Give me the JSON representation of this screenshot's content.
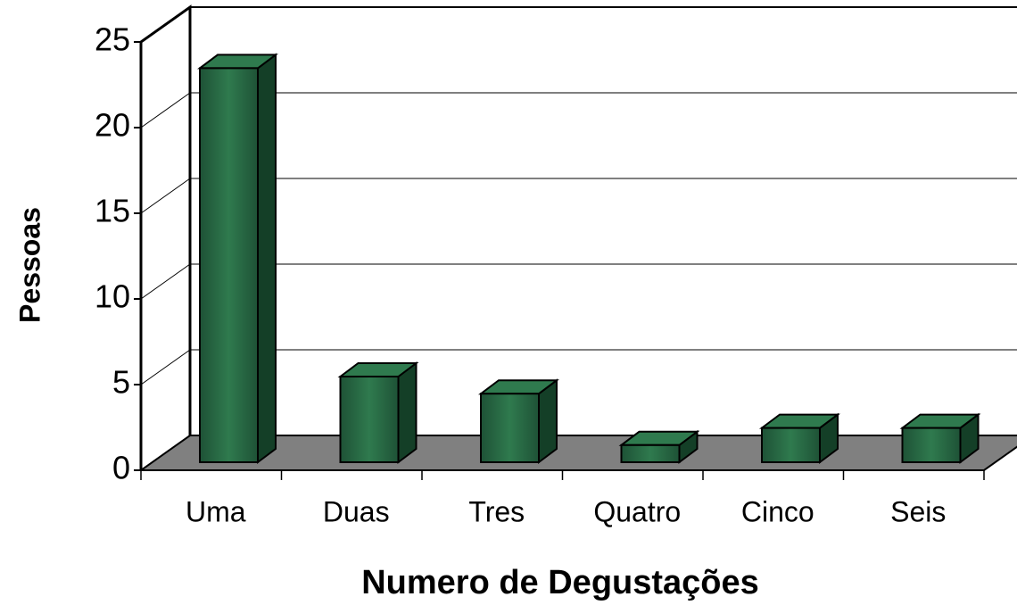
{
  "chart_data": {
    "type": "bar3d",
    "x_label": "Numero de Degustações",
    "y_label": "Pessoas",
    "categories": [
      "Uma",
      "Duas",
      "Tres",
      "Quatro",
      "Cinco",
      "Seis"
    ],
    "values": [
      23,
      5,
      4,
      1,
      2,
      2
    ],
    "color": "#2a6b45",
    "ylim": [
      0,
      25
    ],
    "yticks": [
      0,
      5,
      10,
      15,
      20,
      25
    ],
    "grid": true
  }
}
